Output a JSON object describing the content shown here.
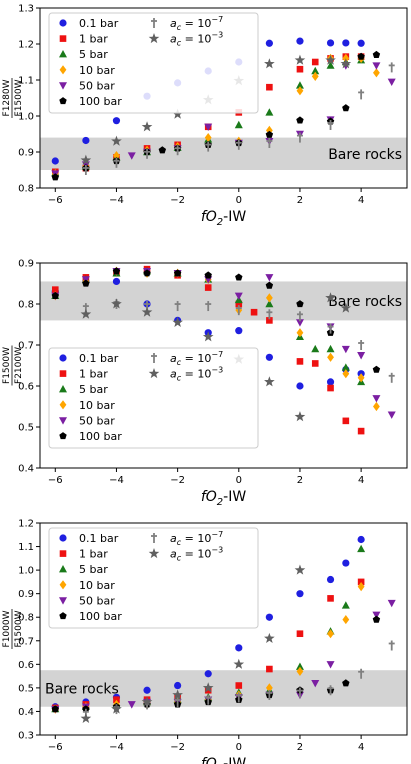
{
  "figure": {
    "legend_pressure_labels": [
      "0.1 bar",
      "1 bar",
      "5 bar",
      "10 bar",
      "50 bar",
      "100 bar"
    ],
    "legend_ac": [
      {
        "label_prefix": "a",
        "label_sub": "c",
        "label_mid": " = 10",
        "label_exp": "−7"
      },
      {
        "label_prefix": "a",
        "label_sub": "c",
        "label_mid": " = 10",
        "label_exp": "−3"
      }
    ],
    "colors": {
      "0.1 bar": "#1f1fe0",
      "1 bar": "#ee1111",
      "5 bar": "#1a7a1a",
      "10 bar": "#ffa500",
      "50 bar": "#7b1fa2",
      "100 bar": "#000000",
      "ac7": "#808080",
      "ac3": "#606060",
      "band": "#d3d3d3"
    },
    "markers": {
      "0.1 bar": "circle",
      "1 bar": "square",
      "5 bar": "triangle",
      "10 bar": "diamond",
      "50 bar": "triangle-down",
      "100 bar": "pentagon",
      "ac7": "dagger",
      "ac3": "star"
    }
  },
  "chart_data": [
    {
      "type": "scatter",
      "title": "",
      "xlabel_main": "fO",
      "xlabel_sub": "2",
      "xlabel_tail": "-IW",
      "ylabel_top": "F1280W",
      "ylabel_bottom": "F1500W",
      "xlim": [
        -6.5,
        5.5
      ],
      "ylim": [
        0.8,
        1.3
      ],
      "xticks": [
        -6,
        -4,
        -2,
        0,
        2,
        4
      ],
      "xtick_labels": [
        "−6",
        "−4",
        "−2",
        "0",
        "2",
        "4"
      ],
      "yticks": [
        0.8,
        0.9,
        1.0,
        1.1,
        1.2,
        1.3
      ],
      "ytick_labels": [
        "0.8",
        "0.9",
        "1.0",
        "1.1",
        "1.2",
        "1.3"
      ],
      "band": {
        "label": "Bare rocks",
        "y0": 0.85,
        "y1": 0.94,
        "label_position": "right"
      },
      "legend_position": "top-left",
      "series": [
        {
          "name": "0.1 bar",
          "x": [
            -6,
            -5,
            -4,
            -3,
            -2,
            -1,
            0,
            1,
            2,
            3,
            3.5,
            4
          ],
          "y": [
            0.875,
            0.932,
            0.987,
            1.055,
            1.092,
            1.125,
            1.15,
            1.202,
            1.208,
            1.203,
            1.203,
            1.202
          ]
        },
        {
          "name": "1 bar",
          "x": [
            -6,
            -5,
            -4,
            -3,
            -2,
            -1,
            0,
            1,
            2,
            2.5,
            3,
            3.5,
            4
          ],
          "y": [
            0.845,
            0.855,
            0.885,
            0.91,
            0.92,
            0.97,
            1.01,
            1.08,
            1.13,
            1.15,
            1.16,
            1.165,
            1.165
          ]
        },
        {
          "name": "5 bar",
          "x": [
            -6,
            -5,
            -4,
            -3,
            -2,
            -1,
            0,
            1,
            2,
            2.5,
            3,
            3.5,
            4
          ],
          "y": [
            0.842,
            0.86,
            0.885,
            0.9,
            0.912,
            0.935,
            0.975,
            1.01,
            1.085,
            1.125,
            1.14,
            1.15,
            1.155
          ]
        },
        {
          "name": "10 bar",
          "x": [
            -6,
            -5,
            -4,
            -3,
            -2,
            -1,
            0,
            1,
            2,
            2.5,
            3,
            3.5,
            4,
            4.5
          ],
          "y": [
            0.84,
            0.86,
            0.89,
            0.905,
            0.915,
            0.94,
            0.93,
            0.96,
            1.07,
            1.11,
            1.16,
            1.16,
            1.16,
            1.12
          ]
        },
        {
          "name": "50 bar",
          "x": [
            -6,
            -5,
            -3.5,
            -3,
            -2,
            -1,
            0,
            1,
            2,
            3,
            3.5,
            4.5,
            5
          ],
          "y": [
            0.84,
            0.865,
            0.89,
            0.9,
            0.91,
            0.97,
            0.925,
            0.93,
            0.95,
            0.99,
            1.14,
            1.14,
            1.095
          ]
        },
        {
          "name": "100 bar",
          "x": [
            -6,
            -5,
            -4,
            -3,
            -2.5,
            -2,
            -1,
            0,
            1,
            2,
            3,
            3.5,
            4,
            4.5
          ],
          "y": [
            0.83,
            0.855,
            0.875,
            0.9,
            0.905,
            0.91,
            0.92,
            0.925,
            0.948,
            0.988,
            0.985,
            1.022,
            1.165,
            1.17
          ]
        },
        {
          "name": "ac7",
          "x": [
            -5,
            -4,
            -3,
            -2,
            -1,
            0,
            1,
            2,
            3,
            4,
            5
          ],
          "y": [
            0.85,
            0.87,
            0.895,
            0.905,
            0.915,
            0.92,
            0.925,
            0.94,
            0.975,
            1.06,
            1.135
          ]
        },
        {
          "name": "ac3",
          "x": [
            -5,
            -4,
            -3,
            -2,
            -1,
            0,
            1,
            2,
            3,
            3.5
          ],
          "y": [
            0.877,
            0.93,
            0.97,
            1.005,
            1.045,
            1.098,
            1.145,
            1.155,
            1.155,
            1.145
          ]
        }
      ]
    },
    {
      "type": "scatter",
      "title": "",
      "xlabel_main": "fO",
      "xlabel_sub": "2",
      "xlabel_tail": "-IW",
      "ylabel_top": "F1500W",
      "ylabel_bottom": "F2100W",
      "xlim": [
        -6.5,
        5.5
      ],
      "ylim": [
        0.4,
        0.9
      ],
      "xticks": [
        -6,
        -4,
        -2,
        0,
        2,
        4
      ],
      "xtick_labels": [
        "−6",
        "−4",
        "−2",
        "0",
        "2",
        "4"
      ],
      "yticks": [
        0.4,
        0.5,
        0.6,
        0.7,
        0.8,
        0.9
      ],
      "ytick_labels": [
        "0.4",
        "0.5",
        "0.6",
        "0.7",
        "0.8",
        "0.9"
      ],
      "band": {
        "label": "Bare rocks",
        "y0": 0.76,
        "y1": 0.855,
        "label_position": "right"
      },
      "legend_position": "center-left",
      "series": [
        {
          "name": "0.1 bar",
          "x": [
            -6,
            -5,
            -4,
            -3,
            -2,
            -1,
            0,
            1,
            2,
            3,
            3.5,
            4
          ],
          "y": [
            0.83,
            0.855,
            0.855,
            0.8,
            0.76,
            0.73,
            0.735,
            0.67,
            0.6,
            0.61,
            0.64,
            0.63
          ]
        },
        {
          "name": "1 bar",
          "x": [
            -6,
            -5,
            -4,
            -3,
            -2,
            -1,
            0,
            0.5,
            1,
            2,
            2.5,
            3,
            3.5,
            4
          ],
          "y": [
            0.835,
            0.865,
            0.875,
            0.885,
            0.87,
            0.84,
            0.8,
            0.78,
            0.76,
            0.66,
            0.655,
            0.595,
            0.515,
            0.49
          ]
        },
        {
          "name": "5 bar",
          "x": [
            -6,
            -5,
            -4,
            -3,
            -2,
            -1,
            0,
            1,
            2,
            2.5,
            3,
            3.5,
            4
          ],
          "y": [
            0.82,
            0.86,
            0.875,
            0.88,
            0.875,
            0.86,
            0.81,
            0.8,
            0.72,
            0.69,
            0.69,
            0.645,
            0.61
          ]
        },
        {
          "name": "10 bar",
          "x": [
            -6,
            -5,
            -4,
            -3,
            -2,
            -1,
            0,
            1,
            2,
            3,
            3.5,
            4,
            4.5
          ],
          "y": [
            0.82,
            0.855,
            0.88,
            0.875,
            0.875,
            0.86,
            0.785,
            0.815,
            0.73,
            0.67,
            0.63,
            0.62,
            0.55
          ]
        },
        {
          "name": "50 bar",
          "x": [
            -6,
            -5,
            -4,
            -3,
            -2,
            -1,
            0,
            1,
            2,
            3,
            3.5,
            4,
            4.5,
            5
          ],
          "y": [
            0.82,
            0.86,
            0.88,
            0.88,
            0.875,
            0.86,
            0.82,
            0.865,
            0.755,
            0.745,
            0.69,
            0.675,
            0.57,
            0.53
          ]
        },
        {
          "name": "100 bar",
          "x": [
            -6,
            -5,
            -4,
            -3,
            -2,
            -1,
            0,
            1,
            2,
            3,
            4.5
          ],
          "y": [
            0.82,
            0.85,
            0.88,
            0.875,
            0.875,
            0.87,
            0.865,
            0.845,
            0.8,
            0.73,
            0.64
          ]
        },
        {
          "name": "ac7",
          "x": [
            -5,
            -4,
            -3,
            -2,
            -1,
            0,
            1,
            2,
            3,
            4,
            5
          ],
          "y": [
            0.79,
            0.8,
            0.795,
            0.795,
            0.795,
            0.785,
            0.775,
            0.77,
            0.74,
            0.7,
            0.62
          ]
        },
        {
          "name": "ac3",
          "x": [
            -5,
            -4,
            -3,
            -2,
            -1,
            0,
            1,
            2,
            3,
            3.5
          ],
          "y": [
            0.775,
            0.8,
            0.78,
            0.755,
            0.72,
            0.665,
            0.61,
            0.525,
            0.815,
            0.79
          ]
        }
      ]
    },
    {
      "type": "scatter",
      "title": "",
      "xlabel_main": "fO",
      "xlabel_sub": "2",
      "xlabel_tail": "-IW",
      "ylabel_top": "F1000W",
      "ylabel_bottom": "F1500W",
      "xlim": [
        -6.5,
        5.5
      ],
      "ylim": [
        0.3,
        1.2
      ],
      "xticks": [
        -6,
        -4,
        -2,
        0,
        2,
        4
      ],
      "xtick_labels": [
        "−6",
        "−4",
        "−2",
        "0",
        "2",
        "4"
      ],
      "yticks": [
        0.3,
        0.4,
        0.5,
        0.6,
        0.7,
        0.8,
        0.9,
        1.0,
        1.1,
        1.2
      ],
      "ytick_labels": [
        "0.3",
        "0.4",
        "0.5",
        "0.6",
        "0.7",
        "0.8",
        "0.9",
        "1.0",
        "1.1",
        "1.2"
      ],
      "band": {
        "label": "Bare rocks",
        "y0": 0.42,
        "y1": 0.575,
        "label_position": "left"
      },
      "legend_position": "top-left",
      "series": [
        {
          "name": "0.1 bar",
          "x": [
            -6,
            -5,
            -4,
            -3,
            -2,
            -1,
            0,
            1,
            2,
            3,
            3.5,
            4
          ],
          "y": [
            0.42,
            0.44,
            0.46,
            0.49,
            0.51,
            0.56,
            0.67,
            0.8,
            0.9,
            0.96,
            1.03,
            1.13
          ]
        },
        {
          "name": "1 bar",
          "x": [
            -6,
            -5,
            -4,
            -3,
            -2,
            -1,
            0,
            1,
            2,
            3,
            4
          ],
          "y": [
            0.415,
            0.43,
            0.45,
            0.45,
            0.46,
            0.49,
            0.51,
            0.58,
            0.73,
            0.88,
            0.95
          ]
        },
        {
          "name": "5 bar",
          "x": [
            -6,
            -5,
            -4,
            -3,
            -2,
            -1,
            0,
            1,
            2,
            3,
            3.5,
            4
          ],
          "y": [
            0.41,
            0.42,
            0.43,
            0.44,
            0.45,
            0.46,
            0.48,
            0.49,
            0.59,
            0.74,
            0.85,
            1.09
          ]
        },
        {
          "name": "10 bar",
          "x": [
            -6,
            -5,
            -4,
            -3,
            -2,
            -1,
            0,
            1,
            2,
            3,
            3.5,
            4
          ],
          "y": [
            0.41,
            0.42,
            0.43,
            0.43,
            0.44,
            0.45,
            0.47,
            0.5,
            0.57,
            0.73,
            0.79,
            0.93
          ]
        },
        {
          "name": "50 bar",
          "x": [
            -6,
            -5,
            -3.5,
            -3,
            -2,
            -1,
            0,
            1,
            2,
            2.5,
            3,
            4.5,
            5
          ],
          "y": [
            0.41,
            0.42,
            0.43,
            0.44,
            0.44,
            0.45,
            0.46,
            0.47,
            0.47,
            0.52,
            0.6,
            0.81,
            0.86
          ]
        },
        {
          "name": "100 bar",
          "x": [
            -6,
            -5,
            -4,
            -3,
            -2,
            -1,
            0,
            1,
            2,
            3,
            3.5,
            4.5
          ],
          "y": [
            0.41,
            0.41,
            0.42,
            0.43,
            0.43,
            0.44,
            0.45,
            0.47,
            0.49,
            0.49,
            0.52,
            0.79
          ]
        },
        {
          "name": "ac7",
          "x": [
            -5,
            -4,
            -3,
            -2,
            -1,
            0,
            1,
            2,
            3,
            4,
            5
          ],
          "y": [
            0.39,
            0.41,
            0.43,
            0.44,
            0.45,
            0.46,
            0.47,
            0.48,
            0.49,
            0.56,
            0.68
          ]
        },
        {
          "name": "ac3",
          "x": [
            -5,
            -4,
            -3,
            -2,
            -1,
            0,
            1,
            2
          ],
          "y": [
            0.37,
            0.41,
            0.44,
            0.47,
            0.5,
            0.6,
            0.71,
            1.0
          ]
        }
      ]
    }
  ]
}
